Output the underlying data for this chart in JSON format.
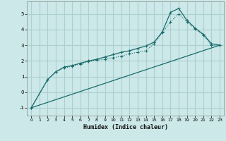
{
  "xlabel": "Humidex (Indice chaleur)",
  "bg_color": "#cce8e8",
  "grid_color": "#aad0d0",
  "line_color": "#1a6b6b",
  "xlim": [
    -0.5,
    23.5
  ],
  "ylim": [
    -1.5,
    5.8
  ],
  "yticks": [
    -1,
    0,
    1,
    2,
    3,
    4,
    5
  ],
  "xticks": [
    0,
    1,
    2,
    3,
    4,
    5,
    6,
    7,
    8,
    9,
    10,
    11,
    12,
    13,
    14,
    15,
    16,
    17,
    18,
    19,
    20,
    21,
    22,
    23
  ],
  "line1_x": [
    0,
    2,
    3,
    4,
    5,
    6,
    7,
    8,
    9,
    10,
    11,
    12,
    13,
    14,
    15,
    16,
    17,
    18,
    19,
    20,
    21,
    22,
    23
  ],
  "line1_y": [
    -1.0,
    0.8,
    1.3,
    1.6,
    1.7,
    1.85,
    2.0,
    2.1,
    2.25,
    2.4,
    2.55,
    2.65,
    2.8,
    2.95,
    3.2,
    3.85,
    5.1,
    5.35,
    4.6,
    4.1,
    3.7,
    3.1,
    3.0
  ],
  "line2_x": [
    0,
    2,
    3,
    4,
    5,
    6,
    7,
    8,
    9,
    10,
    11,
    12,
    13,
    14,
    15,
    16,
    17,
    18,
    19,
    20,
    21,
    22,
    23
  ],
  "line2_y": [
    -1.0,
    0.8,
    1.3,
    1.55,
    1.65,
    1.8,
    1.95,
    2.05,
    2.1,
    2.2,
    2.3,
    2.45,
    2.55,
    2.65,
    3.1,
    3.8,
    4.5,
    5.0,
    4.5,
    4.05,
    3.65,
    3.0,
    3.0
  ],
  "line3_x": [
    0,
    23
  ],
  "line3_y": [
    -1.0,
    3.0
  ]
}
